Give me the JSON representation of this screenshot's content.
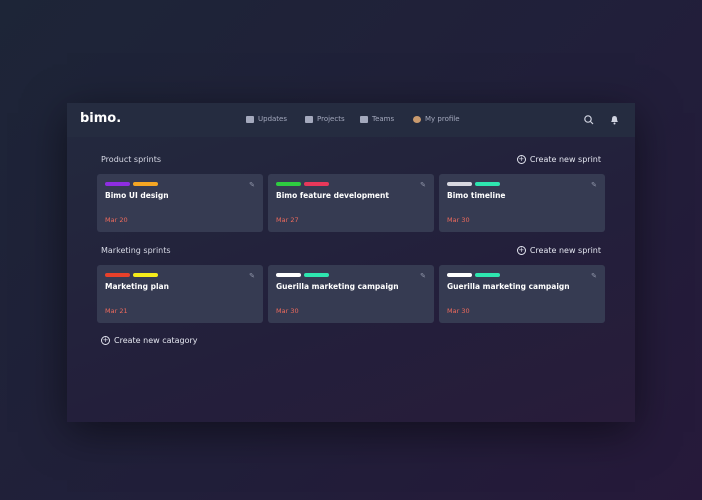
{
  "header": {
    "logo": "bimo.",
    "nav": [
      "Updates",
      "Projects",
      "Teams",
      "My profile"
    ]
  },
  "sections": [
    {
      "title": "Product sprints",
      "action": "Create new sprint",
      "cards": [
        {
          "tags": [
            "#8e2de2",
            "#f5a623"
          ],
          "title": "Bimo UI design",
          "date": "Mar 20"
        },
        {
          "tags": [
            "#2ecc40",
            "#e8385a"
          ],
          "title": "Bimo feature development",
          "date": "Mar 27"
        },
        {
          "tags": [
            "#d8d8e0",
            "#2ee6b0"
          ],
          "title": "Bimo timeline",
          "date": "Mar 30"
        }
      ]
    },
    {
      "title": "Marketing sprints",
      "action": "Create new sprint",
      "cards": [
        {
          "tags": [
            "#e8402a",
            "#f5ec1a"
          ],
          "title": "Marketing plan",
          "date": "Mar 21"
        },
        {
          "tags": [
            "#ffffff",
            "#2ee6b0"
          ],
          "title": "Guerilla marketing campaign",
          "date": "Mar 30"
        },
        {
          "tags": [
            "#ffffff",
            "#2ee6b0"
          ],
          "title": "Guerilla marketing campaign",
          "date": "Mar 30"
        }
      ]
    }
  ],
  "footer_action": "Create new catagory"
}
